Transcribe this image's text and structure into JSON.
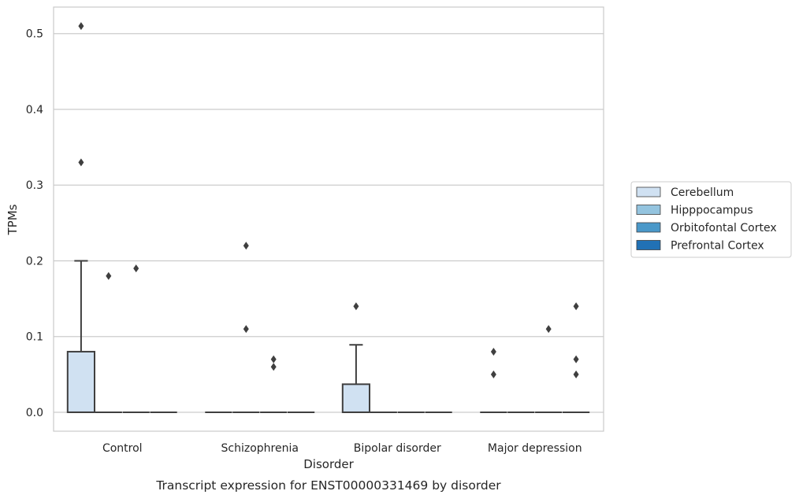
{
  "chart_data": {
    "type": "box",
    "caption": "Transcript expression for ENST00000331469 by disorder",
    "xlabel": "Disorder",
    "ylabel": "TPMs",
    "categories": [
      "Control",
      "Schizophrenia",
      "Bipolar disorder",
      "Major depression"
    ],
    "ylim": [
      -0.025,
      0.535
    ],
    "yticks": [
      0.0,
      0.1,
      0.2,
      0.3,
      0.4,
      0.5
    ],
    "ytick_labels": [
      "0.0",
      "0.1",
      "0.2",
      "0.3",
      "0.4",
      "0.5"
    ],
    "grid": "horizontal",
    "legend_position": "right",
    "legend": [
      "Cerebellum",
      "Hipppocampus",
      "Orbitofontal Cortex",
      "Prefrontal Cortex"
    ],
    "colors": [
      "#d0e1f2",
      "#94c4df",
      "#4a98c9",
      "#2171b5"
    ],
    "series": [
      {
        "name": "Cerebellum",
        "boxes": [
          {
            "q1": 0.0,
            "median": 0.0,
            "q3": 0.08,
            "whislo": 0.0,
            "whishi": 0.2,
            "fliers": [
              0.51,
              0.33
            ]
          },
          {
            "q1": 0.0,
            "median": 0.0,
            "q3": 0.0,
            "whislo": 0.0,
            "whishi": 0.0,
            "fliers": []
          },
          {
            "q1": 0.0,
            "median": 0.0,
            "q3": 0.037,
            "whislo": 0.0,
            "whishi": 0.089,
            "fliers": [
              0.14
            ]
          },
          {
            "q1": 0.0,
            "median": 0.0,
            "q3": 0.0,
            "whislo": 0.0,
            "whishi": 0.0,
            "fliers": [
              0.08,
              0.05
            ]
          }
        ]
      },
      {
        "name": "Hipppocampus",
        "boxes": [
          {
            "q1": 0.0,
            "median": 0.0,
            "q3": 0.0,
            "whislo": 0.0,
            "whishi": 0.0,
            "fliers": [
              0.18
            ]
          },
          {
            "q1": 0.0,
            "median": 0.0,
            "q3": 0.0,
            "whislo": 0.0,
            "whishi": 0.0,
            "fliers": [
              0.22,
              0.11
            ]
          },
          {
            "q1": 0.0,
            "median": 0.0,
            "q3": 0.0,
            "whislo": 0.0,
            "whishi": 0.0,
            "fliers": []
          },
          {
            "q1": 0.0,
            "median": 0.0,
            "q3": 0.0,
            "whislo": 0.0,
            "whishi": 0.0,
            "fliers": []
          }
        ]
      },
      {
        "name": "Orbitofontal Cortex",
        "boxes": [
          {
            "q1": 0.0,
            "median": 0.0,
            "q3": 0.0,
            "whislo": 0.0,
            "whishi": 0.0,
            "fliers": [
              0.19
            ]
          },
          {
            "q1": 0.0,
            "median": 0.0,
            "q3": 0.0,
            "whislo": 0.0,
            "whishi": 0.0,
            "fliers": [
              0.07,
              0.06
            ]
          },
          {
            "q1": 0.0,
            "median": 0.0,
            "q3": 0.0,
            "whislo": 0.0,
            "whishi": 0.0,
            "fliers": []
          },
          {
            "q1": 0.0,
            "median": 0.0,
            "q3": 0.0,
            "whislo": 0.0,
            "whishi": 0.0,
            "fliers": [
              0.11
            ]
          }
        ]
      },
      {
        "name": "Prefrontal Cortex",
        "boxes": [
          {
            "q1": 0.0,
            "median": 0.0,
            "q3": 0.0,
            "whislo": 0.0,
            "whishi": 0.0,
            "fliers": []
          },
          {
            "q1": 0.0,
            "median": 0.0,
            "q3": 0.0,
            "whislo": 0.0,
            "whishi": 0.0,
            "fliers": []
          },
          {
            "q1": 0.0,
            "median": 0.0,
            "q3": 0.0,
            "whislo": 0.0,
            "whishi": 0.0,
            "fliers": []
          },
          {
            "q1": 0.0,
            "median": 0.0,
            "q3": 0.0,
            "whislo": 0.0,
            "whishi": 0.0,
            "fliers": [
              0.14,
              0.07,
              0.05
            ]
          }
        ]
      }
    ]
  }
}
